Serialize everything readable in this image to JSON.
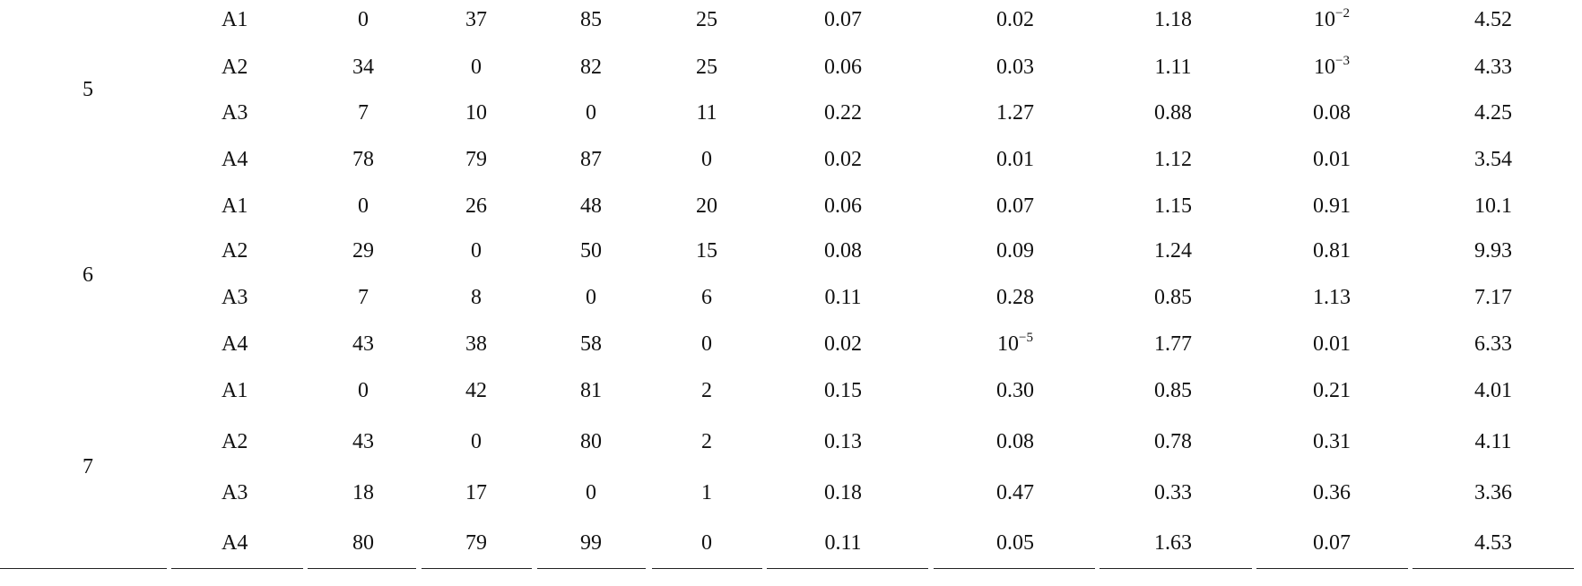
{
  "table": {
    "groups": [
      {
        "label": "5",
        "rows": [
          {
            "label": "A1",
            "cells": [
              "0",
              "37",
              "85",
              "25",
              "0.07",
              "0.02",
              "1.18",
              {
                "base": "10",
                "exp": "−2"
              },
              "4.52"
            ]
          },
          {
            "label": "A2",
            "cells": [
              "34",
              "0",
              "82",
              "25",
              "0.06",
              "0.03",
              "1.11",
              {
                "base": "10",
                "exp": "−3"
              },
              "4.33"
            ]
          },
          {
            "label": "A3",
            "cells": [
              "7",
              "10",
              "0",
              "11",
              "0.22",
              "1.27",
              "0.88",
              "0.08",
              "4.25"
            ]
          },
          {
            "label": "A4",
            "cells": [
              "78",
              "79",
              "87",
              "0",
              "0.02",
              "0.01",
              "1.12",
              "0.01",
              "3.54"
            ]
          }
        ]
      },
      {
        "label": "6",
        "rows": [
          {
            "label": "A1",
            "cells": [
              "0",
              "26",
              "48",
              "20",
              "0.06",
              "0.07",
              "1.15",
              "0.91",
              "10.1"
            ]
          },
          {
            "label": "A2",
            "cells": [
              "29",
              "0",
              "50",
              "15",
              "0.08",
              "0.09",
              "1.24",
              "0.81",
              "9.93"
            ]
          },
          {
            "label": "A3",
            "cells": [
              "7",
              "8",
              "0",
              "6",
              "0.11",
              "0.28",
              "0.85",
              "1.13",
              "7.17"
            ]
          },
          {
            "label": "A4",
            "cells": [
              "43",
              "38",
              "58",
              "0",
              "0.02",
              {
                "base": "10",
                "exp": "−5"
              },
              "1.77",
              "0.01",
              "6.33"
            ]
          }
        ]
      },
      {
        "label": "7",
        "rows": [
          {
            "label": "A1",
            "cells": [
              "0",
              "42",
              "81",
              "2",
              "0.15",
              "0.30",
              "0.85",
              "0.21",
              "4.01"
            ]
          },
          {
            "label": "A2",
            "cells": [
              "43",
              "0",
              "80",
              "2",
              "0.13",
              "0.08",
              "0.78",
              "0.31",
              "4.11"
            ]
          },
          {
            "label": "A3",
            "cells": [
              "18",
              "17",
              "0",
              "1",
              "0.18",
              "0.47",
              "0.33",
              "0.36",
              "3.36"
            ]
          },
          {
            "label": "A4",
            "cells": [
              "80",
              "79",
              "99",
              "0",
              "0.11",
              "0.05",
              "1.63",
              "0.07",
              "4.53"
            ]
          }
        ]
      }
    ]
  }
}
